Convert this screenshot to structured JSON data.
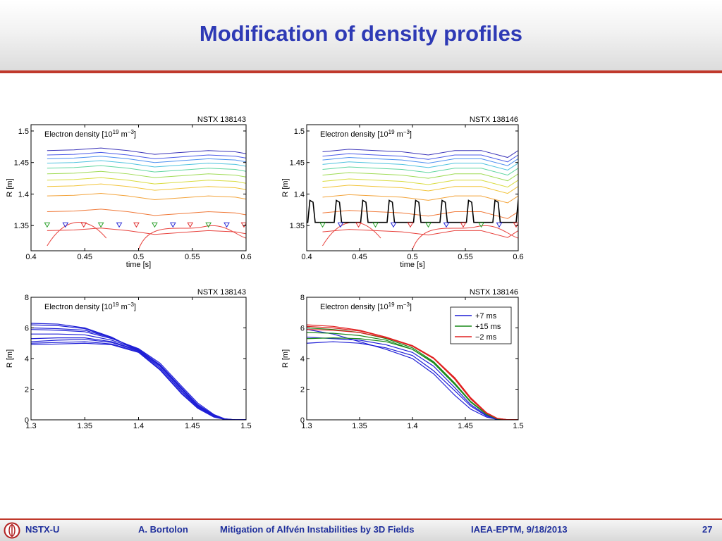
{
  "slide": {
    "title": "Modification of density profiles"
  },
  "footer": {
    "org": "NSTX-U",
    "author": "A. Bortolon",
    "talk": "Mitigation of Alfvén Instabilities by 3D Fields",
    "event": "IAEA-EPTM, 9/18/2013",
    "page": "27"
  },
  "colors": {
    "title": "#2e3ab5",
    "rule": "#c0392b",
    "footer_text": "#1f2f9c"
  },
  "chart_data": [
    {
      "id": "contour-138143",
      "type": "line",
      "title": "NSTX 138143",
      "annotation": "Electron density [10^19 m^-3]",
      "xlabel": "time [s]",
      "ylabel": "R [m]",
      "xlim": [
        0.4,
        0.6
      ],
      "ylim": [
        1.31,
        1.51
      ],
      "xticks": [
        "0.4",
        "0.45",
        "0.5",
        "0.55",
        "0.6"
      ],
      "yticks": [
        "1.35",
        "1.4",
        "1.45",
        "1.5"
      ],
      "x": [
        0.415,
        0.44,
        0.465,
        0.49,
        0.515,
        0.54,
        0.565,
        0.59,
        0.6
      ],
      "contour_offsets": [
        -0.12,
        -0.09,
        -0.065,
        -0.05,
        -0.04,
        -0.03,
        -0.021,
        -0.013,
        -0.006,
        0.0,
        0.007
      ],
      "contour_colors": [
        "#e8413c",
        "#f07a3a",
        "#f3a33a",
        "#f2c43a",
        "#d9dc3e",
        "#9fdb55",
        "#5fd6a0",
        "#4fc3df",
        "#4d8ff0",
        "#4a5ae8",
        "#3a33b8"
      ],
      "contour_top": [
        1.462,
        1.463,
        1.466,
        1.462,
        1.456,
        1.459,
        1.462,
        1.46,
        1.457
      ],
      "pellet_markers": [
        {
          "t": 0.415,
          "color": "green"
        },
        {
          "t": 0.432,
          "color": "blue"
        },
        {
          "t": 0.449,
          "color": "red"
        },
        {
          "t": 0.465,
          "color": "green"
        },
        {
          "t": 0.482,
          "color": "blue"
        },
        {
          "t": 0.498,
          "color": "red"
        },
        {
          "t": 0.515,
          "color": "green"
        },
        {
          "t": 0.532,
          "color": "blue"
        },
        {
          "t": 0.548,
          "color": "red"
        },
        {
          "t": 0.565,
          "color": "green"
        },
        {
          "t": 0.582,
          "color": "blue"
        },
        {
          "t": 0.598,
          "color": "red"
        }
      ],
      "pellet_r": 1.351
    },
    {
      "id": "contour-138146",
      "type": "line",
      "title": "NSTX 138146",
      "annotation": "Electron density [10^19 m^-3]",
      "xlabel": "time [s]",
      "ylabel": "R [m]",
      "xlim": [
        0.4,
        0.6
      ],
      "ylim": [
        1.31,
        1.51
      ],
      "xticks": [
        "0.4",
        "0.45",
        "0.5",
        "0.55",
        "0.6"
      ],
      "yticks": [
        "1.35",
        "1.4",
        "1.45",
        "1.5"
      ],
      "x": [
        0.415,
        0.44,
        0.465,
        0.49,
        0.515,
        0.54,
        0.565,
        0.59,
        0.6
      ],
      "contour_offsets": [
        -0.12,
        -0.09,
        -0.065,
        -0.05,
        -0.04,
        -0.03,
        -0.021,
        -0.013,
        -0.006,
        0.0,
        0.007
      ],
      "contour_colors": [
        "#e8413c",
        "#f07a3a",
        "#f3a33a",
        "#f2c43a",
        "#d9dc3e",
        "#9fdb55",
        "#5fd6a0",
        "#4fc3df",
        "#4d8ff0",
        "#4a5ae8",
        "#3a33b8"
      ],
      "contour_top": [
        1.46,
        1.464,
        1.462,
        1.46,
        1.455,
        1.462,
        1.462,
        1.451,
        1.462
      ],
      "trace_baseline": 1.355,
      "trace_spikes": [
        0.403,
        0.428,
        0.453,
        0.478,
        0.503,
        0.528,
        0.553,
        0.578,
        0.6
      ],
      "trace_peak": 1.39,
      "pellet_markers": [
        {
          "t": 0.415,
          "color": "green"
        },
        {
          "t": 0.432,
          "color": "blue"
        },
        {
          "t": 0.449,
          "color": "red"
        },
        {
          "t": 0.465,
          "color": "green"
        },
        {
          "t": 0.482,
          "color": "blue"
        },
        {
          "t": 0.498,
          "color": "red"
        },
        {
          "t": 0.515,
          "color": "green"
        },
        {
          "t": 0.532,
          "color": "blue"
        },
        {
          "t": 0.548,
          "color": "red"
        },
        {
          "t": 0.565,
          "color": "green"
        },
        {
          "t": 0.582,
          "color": "blue"
        },
        {
          "t": 0.598,
          "color": "red"
        }
      ],
      "pellet_r": 1.351
    },
    {
      "id": "profiles-138143",
      "type": "line",
      "title": "NSTX 138143",
      "annotation": "Electron density [10^19 m^-3]",
      "xlabel": "",
      "ylabel": "R [m]",
      "xlim": [
        1.3,
        1.5
      ],
      "ylim": [
        0,
        8
      ],
      "xticks": [
        "1.3",
        "1.35",
        "1.4",
        "1.45",
        "1.5"
      ],
      "yticks": [
        "0",
        "2",
        "4",
        "6",
        "8"
      ],
      "x": [
        1.3,
        1.325,
        1.35,
        1.375,
        1.4,
        1.42,
        1.44,
        1.455,
        1.47,
        1.48,
        1.49,
        1.5
      ],
      "series": [
        {
          "color": "#1f1fd6",
          "values": [
            6.3,
            6.25,
            6.0,
            5.4,
            4.5,
            3.4,
            1.9,
            0.9,
            0.25,
            0.05,
            0.0,
            0.0
          ]
        },
        {
          "color": "#1f1fd6",
          "values": [
            6.2,
            6.15,
            5.95,
            5.35,
            4.6,
            3.6,
            2.1,
            1.0,
            0.3,
            0.06,
            0.0,
            0.0
          ]
        },
        {
          "color": "#1f1fd6",
          "values": [
            6.0,
            5.95,
            5.85,
            5.35,
            4.55,
            3.5,
            2.0,
            0.95,
            0.28,
            0.05,
            0.0,
            0.0
          ]
        },
        {
          "color": "#1f1fd6",
          "values": [
            5.9,
            5.85,
            5.75,
            5.3,
            4.65,
            3.7,
            2.2,
            1.1,
            0.35,
            0.07,
            0.0,
            0.0
          ]
        },
        {
          "color": "#1f1fd6",
          "values": [
            5.6,
            5.6,
            5.55,
            5.2,
            4.6,
            3.55,
            2.05,
            1.0,
            0.3,
            0.06,
            0.0,
            0.0
          ]
        },
        {
          "color": "#1f1fd6",
          "values": [
            5.3,
            5.35,
            5.35,
            5.1,
            4.55,
            3.5,
            2.0,
            0.95,
            0.28,
            0.05,
            0.0,
            0.0
          ]
        },
        {
          "color": "#1f1fd6",
          "values": [
            5.1,
            5.2,
            5.25,
            5.05,
            4.5,
            3.4,
            1.85,
            0.85,
            0.22,
            0.04,
            0.0,
            0.0
          ]
        },
        {
          "color": "#1f1fd6",
          "values": [
            5.0,
            5.05,
            5.1,
            4.95,
            4.45,
            3.3,
            1.75,
            0.8,
            0.2,
            0.04,
            0.0,
            0.0
          ]
        },
        {
          "color": "#1f1fd6",
          "values": [
            4.9,
            4.95,
            5.0,
            4.9,
            4.4,
            3.25,
            1.7,
            0.75,
            0.18,
            0.03,
            0.0,
            0.0
          ]
        }
      ]
    },
    {
      "id": "profiles-138146",
      "type": "line",
      "title": "NSTX 138146",
      "annotation": "Electron density [10^19 m^-3]",
      "xlabel": "",
      "ylabel": "R [m]",
      "xlim": [
        1.3,
        1.5
      ],
      "ylim": [
        0,
        8
      ],
      "xticks": [
        "1.3",
        "1.35",
        "1.4",
        "1.45",
        "1.5"
      ],
      "yticks": [
        "0",
        "2",
        "4",
        "6",
        "8"
      ],
      "legend_position": "top-right",
      "legend": [
        {
          "name": "+7 ms",
          "color": "#1f1fd6"
        },
        {
          "name": "+15 ms",
          "color": "#1a8a1a"
        },
        {
          "name": "−2 ms",
          "color": "#e02020"
        }
      ],
      "x": [
        1.3,
        1.325,
        1.35,
        1.375,
        1.4,
        1.42,
        1.44,
        1.455,
        1.47,
        1.48,
        1.49,
        1.5
      ],
      "series": [
        {
          "color": "#1f1fd6",
          "values": [
            5.9,
            5.6,
            5.1,
            4.6,
            4.0,
            3.0,
            1.6,
            0.7,
            0.18,
            0.03,
            0.0,
            0.0
          ]
        },
        {
          "color": "#1f1fd6",
          "values": [
            5.0,
            5.1,
            5.0,
            4.7,
            4.2,
            3.2,
            1.9,
            0.9,
            0.25,
            0.05,
            0.0,
            0.0
          ]
        },
        {
          "color": "#1f1fd6",
          "values": [
            5.4,
            5.3,
            5.2,
            4.9,
            4.4,
            3.5,
            2.1,
            1.0,
            0.3,
            0.06,
            0.0,
            0.0
          ]
        },
        {
          "color": "#1a8a1a",
          "values": [
            6.0,
            5.9,
            5.7,
            5.3,
            4.7,
            3.8,
            2.4,
            1.2,
            0.38,
            0.08,
            0.0,
            0.0
          ]
        },
        {
          "color": "#1a8a1a",
          "values": [
            5.7,
            5.65,
            5.5,
            5.2,
            4.6,
            3.7,
            2.3,
            1.15,
            0.35,
            0.07,
            0.0,
            0.0
          ]
        },
        {
          "color": "#1a8a1a",
          "values": [
            5.3,
            5.35,
            5.3,
            5.1,
            4.6,
            3.75,
            2.35,
            1.2,
            0.37,
            0.08,
            0.0,
            0.0
          ]
        },
        {
          "color": "#e02020",
          "values": [
            6.2,
            6.1,
            5.85,
            5.4,
            4.8,
            4.0,
            2.7,
            1.4,
            0.45,
            0.1,
            0.01,
            0.0
          ]
        },
        {
          "color": "#e02020",
          "values": [
            6.1,
            6.0,
            5.8,
            5.4,
            4.85,
            4.05,
            2.75,
            1.45,
            0.47,
            0.1,
            0.01,
            0.0
          ]
        },
        {
          "color": "#e02020",
          "values": [
            5.9,
            5.85,
            5.7,
            5.35,
            4.8,
            4.0,
            2.65,
            1.35,
            0.42,
            0.09,
            0.01,
            0.0
          ]
        }
      ]
    }
  ]
}
